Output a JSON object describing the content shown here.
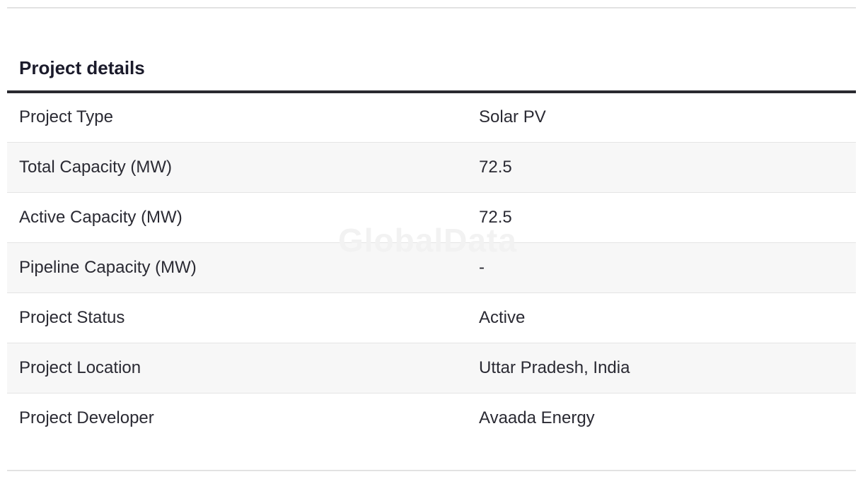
{
  "section": {
    "title": "Project details"
  },
  "watermark": "GlobalData",
  "rows": [
    {
      "label": "Project Type",
      "value": "Solar PV"
    },
    {
      "label": "Total Capacity (MW)",
      "value": "72.5"
    },
    {
      "label": "Active Capacity (MW)",
      "value": "72.5"
    },
    {
      "label": "Pipeline Capacity (MW)",
      "value": "-"
    },
    {
      "label": "Project Status",
      "value": "Active"
    },
    {
      "label": "Project Location",
      "value": "Uttar Pradesh, India"
    },
    {
      "label": "Project Developer",
      "value": "Avaada Energy"
    }
  ]
}
